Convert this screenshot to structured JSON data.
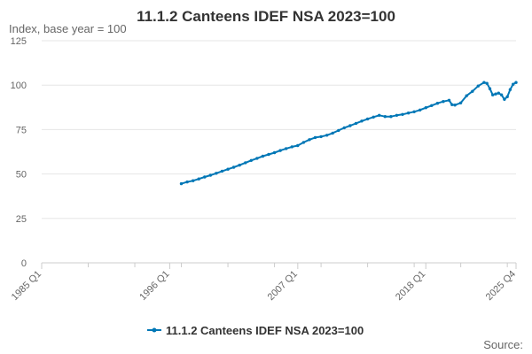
{
  "chart_data": {
    "type": "line",
    "title": "11.1.2 Canteens IDEF NSA 2023=100",
    "ylabel": "Index, base year = 100",
    "xlabel": "",
    "ylim": [
      0,
      125
    ],
    "yticks": [
      0,
      25,
      50,
      75,
      100,
      125
    ],
    "xticks": [
      "1985 Q1",
      "1996 Q1",
      "2007 Q1",
      "2018 Q1",
      "2025 Q4"
    ],
    "grid": true,
    "legend_position": "bottom",
    "source": "Source:",
    "series": [
      {
        "name": "11.1.2 Canteens IDEF NSA 2023=100",
        "color": "#0077b6",
        "points": [
          [
            "1997 Q1",
            44.5
          ],
          [
            "1997 Q3",
            45.5
          ],
          [
            "1998 Q1",
            46.2
          ],
          [
            "1998 Q3",
            47.2
          ],
          [
            "1999 Q1",
            48.3
          ],
          [
            "1999 Q3",
            49.3
          ],
          [
            "2000 Q1",
            50.4
          ],
          [
            "2000 Q3",
            51.6
          ],
          [
            "2001 Q1",
            52.7
          ],
          [
            "2001 Q3",
            53.8
          ],
          [
            "2002 Q1",
            55.0
          ],
          [
            "2002 Q3",
            56.3
          ],
          [
            "2003 Q1",
            57.6
          ],
          [
            "2003 Q3",
            58.8
          ],
          [
            "2004 Q1",
            60.0
          ],
          [
            "2004 Q3",
            61.0
          ],
          [
            "2005 Q1",
            62.0
          ],
          [
            "2005 Q3",
            63.2
          ],
          [
            "2006 Q1",
            64.3
          ],
          [
            "2006 Q3",
            65.3
          ],
          [
            "2007 Q1",
            66.0
          ],
          [
            "2007 Q3",
            67.8
          ],
          [
            "2008 Q1",
            69.3
          ],
          [
            "2008 Q3",
            70.5
          ],
          [
            "2009 Q1",
            71.0
          ],
          [
            "2009 Q3",
            71.8
          ],
          [
            "2010 Q1",
            73.0
          ],
          [
            "2010 Q3",
            74.5
          ],
          [
            "2011 Q1",
            76.0
          ],
          [
            "2011 Q3",
            77.2
          ],
          [
            "2012 Q1",
            78.5
          ],
          [
            "2012 Q3",
            79.8
          ],
          [
            "2013 Q1",
            81.0
          ],
          [
            "2013 Q3",
            82.0
          ],
          [
            "2014 Q1",
            83.0
          ],
          [
            "2014 Q3",
            82.3
          ],
          [
            "2015 Q1",
            82.3
          ],
          [
            "2015 Q3",
            83.0
          ],
          [
            "2016 Q1",
            83.5
          ],
          [
            "2016 Q3",
            84.3
          ],
          [
            "2017 Q1",
            85.0
          ],
          [
            "2017 Q3",
            86.0
          ],
          [
            "2018 Q1",
            87.3
          ],
          [
            "2018 Q3",
            88.5
          ],
          [
            "2019 Q1",
            89.8
          ],
          [
            "2019 Q3",
            90.8
          ],
          [
            "2020 Q1",
            91.5
          ],
          [
            "2020 Q2",
            89.0
          ],
          [
            "2020 Q3",
            88.8
          ],
          [
            "2021 Q1",
            90.0
          ],
          [
            "2021 Q3",
            94.0
          ],
          [
            "2022 Q1",
            96.5
          ],
          [
            "2022 Q3",
            99.5
          ],
          [
            "2023 Q1",
            101.5
          ],
          [
            "2023 Q2",
            101.0
          ],
          [
            "2023 Q3",
            98.0
          ],
          [
            "2023 Q4",
            94.5
          ],
          [
            "2024 Q1",
            95.0
          ],
          [
            "2024 Q2",
            95.5
          ],
          [
            "2024 Q3",
            94.5
          ],
          [
            "2024 Q4",
            92.0
          ],
          [
            "2025 Q1",
            93.5
          ],
          [
            "2025 Q2",
            97.5
          ],
          [
            "2025 Q3",
            100.5
          ],
          [
            "2025 Q4",
            101.5
          ]
        ]
      }
    ]
  }
}
